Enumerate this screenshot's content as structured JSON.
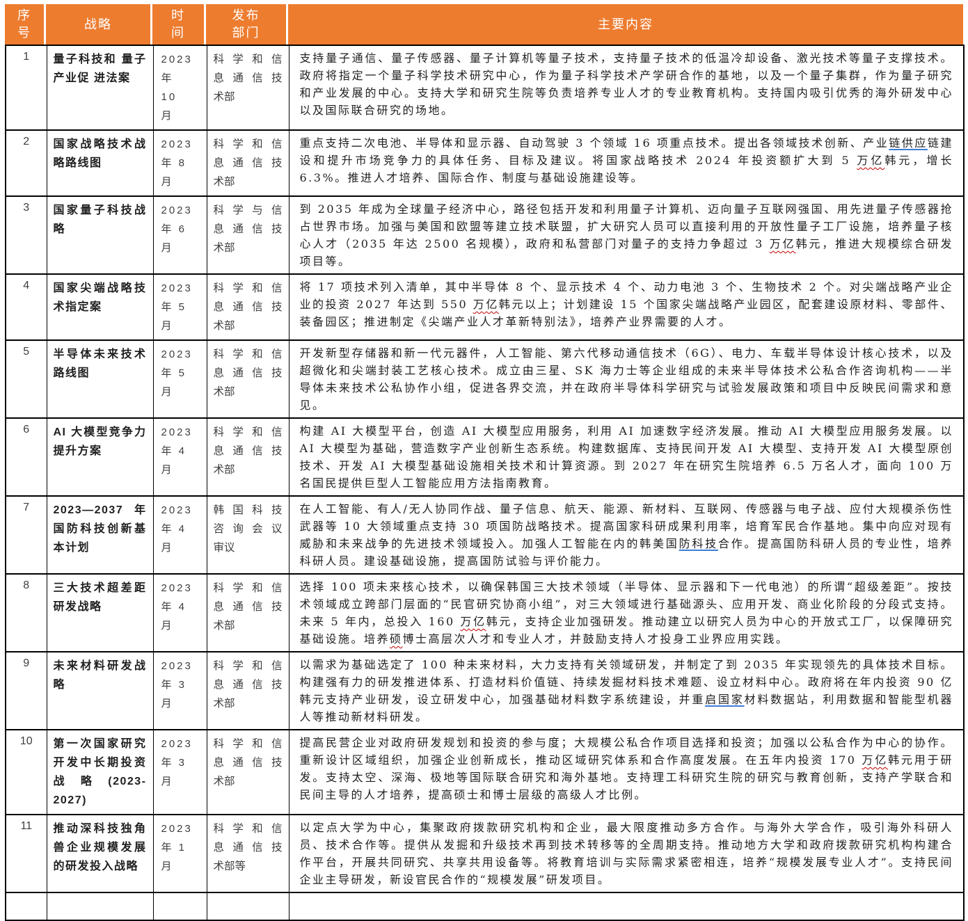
{
  "colors": {
    "header_orange": "#ED7C2F",
    "link_blue": "#3B7DD8",
    "squiggle_red": "#C00000",
    "border_black": "#000000"
  },
  "header": {
    "columns": [
      {
        "key": "number",
        "label_lines": [
          "序",
          "号"
        ]
      },
      {
        "key": "strategy",
        "label_lines": [
          "战略"
        ]
      },
      {
        "key": "time",
        "label_lines": [
          "时",
          "间"
        ]
      },
      {
        "key": "dept",
        "label_lines": [
          "发布",
          "部门"
        ]
      },
      {
        "key": "content",
        "label_lines": [
          "主要内容"
        ]
      }
    ]
  },
  "rows": [
    {
      "num": "1",
      "strategy": "量子科技和 量子产业促 进法案",
      "time_lines": [
        "2023",
        "年",
        "10",
        "月"
      ],
      "dept_lines": [
        "科学和信",
        "息通信技",
        "术部"
      ],
      "content": [
        {
          "t": "支持量子通信、量子传感器、量子计算机等量子技术，支持量子技术的低温冷却设备、激光技术等量子支撑技术。政府将指定一个量子科学技术研究中心，作为量子科学技术产学研合作的基地，以及一个量子集群，作为量子研究和产业发展的中心。支持大学和研究生院等负责培养专业人才的专业教育机构。支持国内吸引优秀的海外研发中心以及国际联合研究的场地。"
        }
      ]
    },
    {
      "num": "2",
      "strategy": "国家战略技术战略路线图",
      "time_lines": [
        "2023",
        "年 8",
        "月"
      ],
      "dept_lines": [
        "科学和信",
        "息通信技",
        "术部"
      ],
      "content": [
        {
          "t": "重点支持二次电池、半导体和显示器、自动驾驶 3 个领域 16 项重点技术。提出各领域技术创新、产业"
        },
        {
          "t": "链供应",
          "s": "link"
        },
        {
          "t": "链建设和提升市场竞争力的具体任务、目标及建议。将国家战略技术 2024 年投资额扩大到 5 "
        },
        {
          "t": "万亿",
          "s": "sp"
        },
        {
          "t": "韩元，增长 6.3%。推进人才培养、国际合作、制度与基础设施建设等。"
        }
      ]
    },
    {
      "num": "3",
      "strategy": "国家量子科技战略",
      "time_lines": [
        "2023",
        "年 6",
        "月"
      ],
      "dept_lines": [
        "科学与信",
        "息通信技",
        "术部"
      ],
      "content": [
        {
          "t": "到 2035 年成为全球量子经济中心，路径包括开发和利用量子计算机、迈向量子互联网强国、用先进量子传感器抢占世界市场。加强与美国和欧盟等建立技术联盟，扩大研究人员可以直接利用的开放性量子工厂设施，培养量子核心人才（2035 年达 2500 名规模），政府和私营部门对量子的支持力争超过 3 "
        },
        {
          "t": "万亿",
          "s": "sp"
        },
        {
          "t": "韩元，推进大规模综合研发项目等。"
        }
      ]
    },
    {
      "num": "4",
      "strategy": "国家尖端战略技术指定案",
      "time_lines": [
        "2023",
        "年 5",
        "月"
      ],
      "dept_lines": [
        "科学和信",
        "息通信技",
        "术部"
      ],
      "content": [
        {
          "t": "将 17 项技术列入清单，其中半导体 8 个、显示技术 4 个、动力电池 3 个、生物技术 2 个。对尖端战略产业企业的投资 2027 年达到 550 "
        },
        {
          "t": "万亿",
          "s": "sp"
        },
        {
          "t": "韩元以上；计划建设 15 个国家尖端战略产业园区，配套建设原材料、零部件、装备园区；推进制定《尖端产业人才革新特别法》，培养产业界需要的人才。"
        }
      ]
    },
    {
      "num": "5",
      "strategy": "半导体未来技术路线图",
      "time_lines": [
        "2023",
        "年 5",
        "月"
      ],
      "dept_lines": [
        "科学和信",
        "息通信技",
        "术部"
      ],
      "content": [
        {
          "t": "开发新型存储器和新一代元器件，人工智能、第六代移动通信技术（6G）、电力、车载半导体设计核心技术，以及超微化和尖端封装工艺核心技术。成立由三星、SK 海力士等企业组成的未来半导体技术公私合作咨询机构——半导体未来技术公私协作小组，促进各界交流，并在政府半导体科学研究与试验发展政策和项目中反映民间需求和意见。"
        }
      ]
    },
    {
      "num": "6",
      "strategy": "AI 大模型竞争力提升方案",
      "time_lines": [
        "2023",
        "年 4",
        "月"
      ],
      "dept_lines": [
        "科学和信",
        "息通信技",
        "术部"
      ],
      "content": [
        {
          "t": "构建 AI 大模型平台，创造 AI 大模型应用服务，利用 AI 加速数字经济发展。推动 AI 大模型应用服务发展。以 AI 大模型为基础，营造数字产业创新生态系统。构建数据库、支持民间开发 AI 大模型、支持开发 AI 大模型原创技术、开发 AI 大模型基础设施相关技术和计算资源。到 2027 年在研究生院培养 6.5 万名人才，面向 100 万名国民提供巨型人工智能应用方法指南教育。"
        }
      ]
    },
    {
      "num": "7",
      "strategy": "2023—2037 年国防科技创新基本计划",
      "time_lines": [
        "2023",
        "年 4",
        "月"
      ],
      "dept_lines": [
        "韩国科技",
        "咨询会议",
        "审议"
      ],
      "content": [
        {
          "t": "在人工智能、有人/无人协同作战、量子信息、航天、能源、新材料、互联网、传感器与电子战、应付大规模杀伤性武器等 10 大领域重点支持 30 项国防战略技术。提高国家科研成果利用率，培育军民合作基地。集中向应对现有威胁和未来战争的先进技术领域投入。加强人工智能在内的韩美国"
        },
        {
          "t": "防科技",
          "s": "link"
        },
        {
          "t": "合作。提高国防科研人员的专业性，培养科研人员。建设基础设施，提高国防试验与评价能力。"
        }
      ]
    },
    {
      "num": "8",
      "strategy": "三大技术超差距研发战略",
      "time_lines": [
        "2023",
        "年 4",
        "月"
      ],
      "dept_lines": [
        "科学和信",
        "息通信技",
        "术部"
      ],
      "content": [
        {
          "t": "选择 100 项未来核心技术，以确保韩国三大技术领域（半导体、显示器和下一代电池）的所谓“超级差距”。按技术领域成立跨部门层面的“民官研究协商小组”，对三大领域进行基础源头、应用开发、商业化阶段的分段式支持。未来 5 年内，总投入 160 "
        },
        {
          "t": "万亿",
          "s": "sp"
        },
        {
          "t": "韩元，支持企业加强研发。推动建立以研究人员为中心的开放式工厂，以保障研究基础设施。培养"
        },
        {
          "t": "硕",
          "s": "sp"
        },
        {
          "t": "博士高层次人才和专业人才，并鼓励支持人才投身工业界应用实践。"
        }
      ]
    },
    {
      "num": "9",
      "strategy": "未来材料研发战略",
      "time_lines": [
        "2023",
        "年 3",
        "月"
      ],
      "dept_lines": [
        "科学和信",
        "息通信技",
        "术部"
      ],
      "content": [
        {
          "t": "以需求为基础选定了 100 种未来材料，大力支持有关领域研发，并制定了到 2035 年实现领先的具体技术目标。构建强有力的研发推进体系、打造材料价值链、持续发掘材料技术难题、设立材料中心。政府将在年内投资 90 亿韩元支持产业研发，设立研发中心，加强基础材料数字系统建设，并重"
        },
        {
          "t": "启国家",
          "s": "link"
        },
        {
          "t": "材料数据站，利用数据和智能型机器人等推动新材料研发。"
        }
      ]
    },
    {
      "num": "10",
      "strategy": "第一次国家研究开发中长期投资战略(2023-2027)",
      "time_lines": [
        "2023",
        "年 3",
        "月"
      ],
      "dept_lines": [
        "科学和信",
        "息通信技",
        "术部"
      ],
      "content": [
        {
          "t": "提高民营企业对政府研发规划和投资的参与度；大规模公私合作项目选择和投资；加强以公私合作为中心的协作。重新设计区域组织，加强企业创新成长，推动区域研究体系和合作高度发展。在五年内投资 170 "
        },
        {
          "t": "万亿",
          "s": "sp"
        },
        {
          "t": "韩元用于研发。支持太空、深海、极地等国际联合研究和海外基地。支持理工科研究生院的研究与教育创新，支持产学联合和民间主导的人才培养，提高硕士和博士层级的高级人才比例。"
        }
      ]
    },
    {
      "num": "11",
      "strategy": "推动深科技独角兽企业规模发展的研发投入战略",
      "time_lines": [
        "2023",
        "年 1",
        "月"
      ],
      "dept_lines": [
        "科学和信",
        "息通信技",
        "术部等"
      ],
      "content": [
        {
          "t": "以定点大学为中心，集聚政府拨款研究机构和企业，最大限度推动多方合作。与海外大学合作，吸引海外科研人员、技术合作等。提供从发掘和升级技术再到技术转移等的全周期支持。推动地方大学和政府拨款研究机构构建合作平台，开展共同研究、共享共用设备等。将教育培训与实际需求紧密相连，培养“规模发展专业人才”。支持民间企业主导研发，新设官民合作的“规模发展”研发项目。"
        }
      ]
    },
    {
      "num": "",
      "strategy": "",
      "time_lines": [],
      "dept_lines": [],
      "content": []
    }
  ]
}
